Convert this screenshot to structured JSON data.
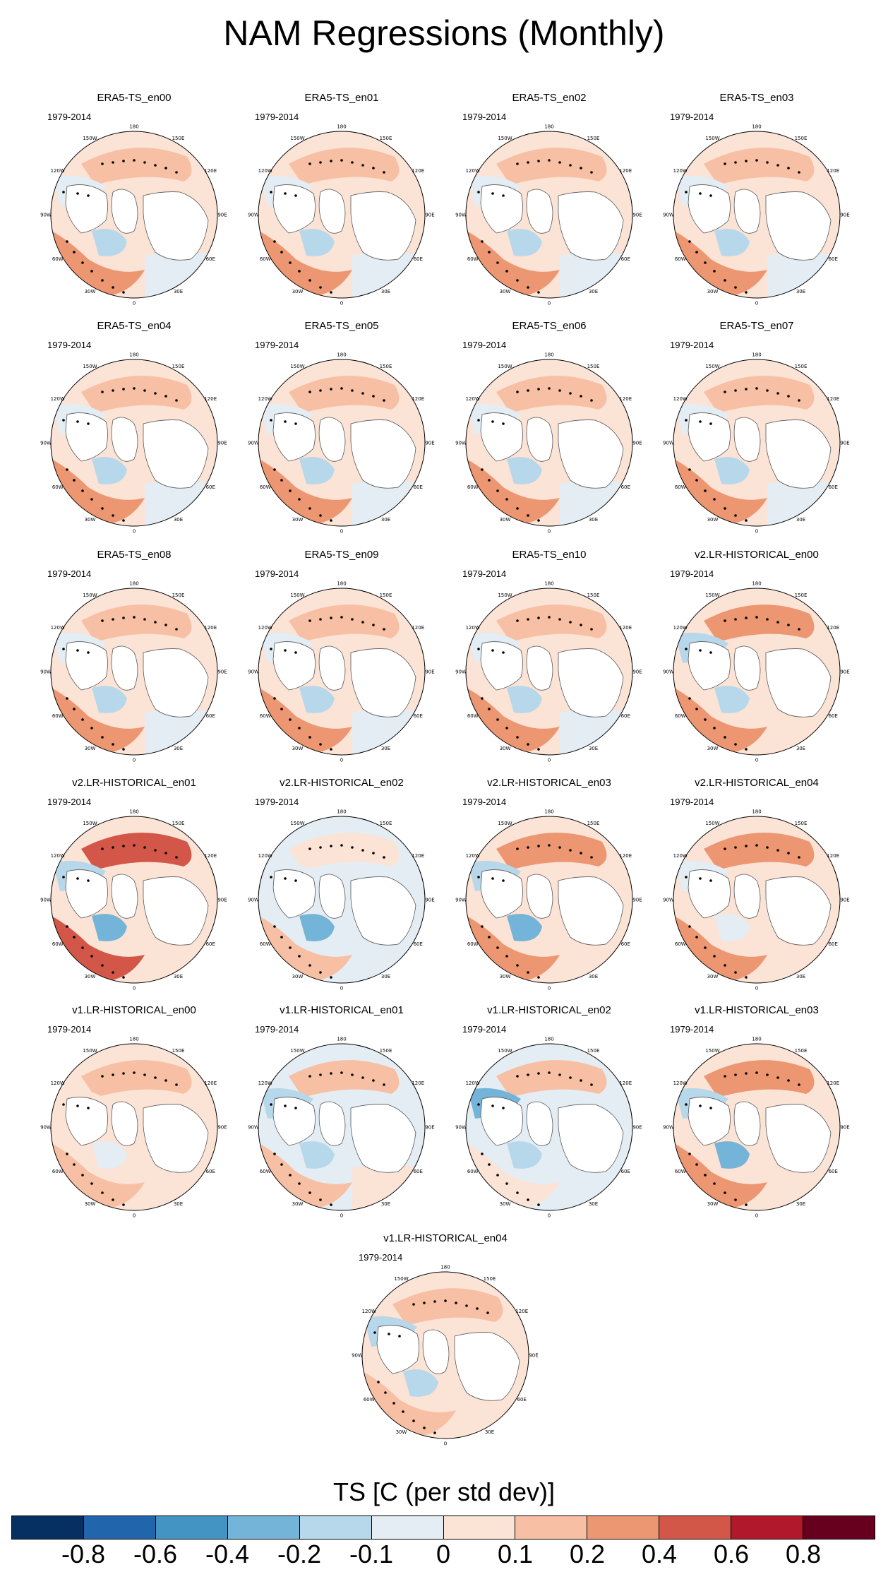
{
  "title": "NAM Regressions (Monthly)",
  "period": "1979-2014",
  "lon_labels": [
    "180",
    "150E",
    "120E",
    "90E",
    "60E",
    "30E",
    "0",
    "30W",
    "60W",
    "90W",
    "120W",
    "150W"
  ],
  "panels": [
    {
      "name": "ERA5-TS_en00",
      "style": "era"
    },
    {
      "name": "ERA5-TS_en01",
      "style": "era"
    },
    {
      "name": "ERA5-TS_en02",
      "style": "era"
    },
    {
      "name": "ERA5-TS_en03",
      "style": "era"
    },
    {
      "name": "ERA5-TS_en04",
      "style": "era"
    },
    {
      "name": "ERA5-TS_en05",
      "style": "era"
    },
    {
      "name": "ERA5-TS_en06",
      "style": "era"
    },
    {
      "name": "ERA5-TS_en07",
      "style": "era"
    },
    {
      "name": "ERA5-TS_en08",
      "style": "era"
    },
    {
      "name": "ERA5-TS_en09",
      "style": "era"
    },
    {
      "name": "ERA5-TS_en10",
      "style": "era"
    },
    {
      "name": "v2.LR-HISTORICAL_en00",
      "style": "v2a"
    },
    {
      "name": "v2.LR-HISTORICAL_en01",
      "style": "v2b"
    },
    {
      "name": "v2.LR-HISTORICAL_en02",
      "style": "v2c"
    },
    {
      "name": "v2.LR-HISTORICAL_en03",
      "style": "v2d"
    },
    {
      "name": "v2.LR-HISTORICAL_en04",
      "style": "v2e"
    },
    {
      "name": "v1.LR-HISTORICAL_en00",
      "style": "v1a"
    },
    {
      "name": "v1.LR-HISTORICAL_en01",
      "style": "v1b"
    },
    {
      "name": "v1.LR-HISTORICAL_en02",
      "style": "v1c"
    },
    {
      "name": "v1.LR-HISTORICAL_en03",
      "style": "v1d"
    },
    {
      "name": "v1.LR-HISTORICAL_en04",
      "style": "v1e"
    }
  ],
  "colorbar": {
    "title": "TS [C (per std dev)]",
    "tick_labels": [
      "-0.8",
      "-0.6",
      "-0.4",
      "-0.2",
      "-0.1",
      "0",
      "0.1",
      "0.2",
      "0.4",
      "0.6",
      "0.8"
    ],
    "colors": [
      "#053061",
      "#2166ac",
      "#4393c3",
      "#74b4d9",
      "#b7d8ea",
      "#e3edf3",
      "#fbe3d6",
      "#f7bfa3",
      "#ec9672",
      "#d25748",
      "#b2182b",
      "#67001f"
    ]
  }
}
